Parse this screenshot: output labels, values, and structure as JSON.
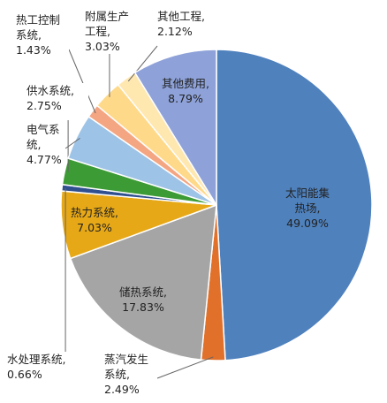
{
  "chart_data": {
    "type": "pie",
    "categories": [
      "太阳能集热场,",
      "蒸汽发生系统,",
      "储热系统,",
      "热力系统,",
      "水处理系统,",
      "供水系统,",
      "电气系统,",
      "热工控制系统,",
      "附属生产工程,",
      "其他工程,",
      "其他费用,"
    ],
    "values": [
      49.09,
      2.49,
      17.83,
      7.03,
      0.66,
      2.75,
      4.77,
      1.43,
      3.03,
      2.12,
      8.79
    ],
    "value_labels": [
      "49.09%",
      "2.49%",
      "17.83%",
      "7.03%",
      "0.66%",
      "2.75%",
      "4.77%",
      "1.43%",
      "3.03%",
      "2.12%",
      "8.79%"
    ],
    "colors": [
      "#4f81bd",
      "#e0702a",
      "#a5a5a5",
      "#e6a817",
      "#2f4f8f",
      "#3d9b35",
      "#9dc3e6",
      "#f4a582",
      "#ffd98a",
      "#ffe7b0",
      "#8ea2d9"
    ]
  }
}
